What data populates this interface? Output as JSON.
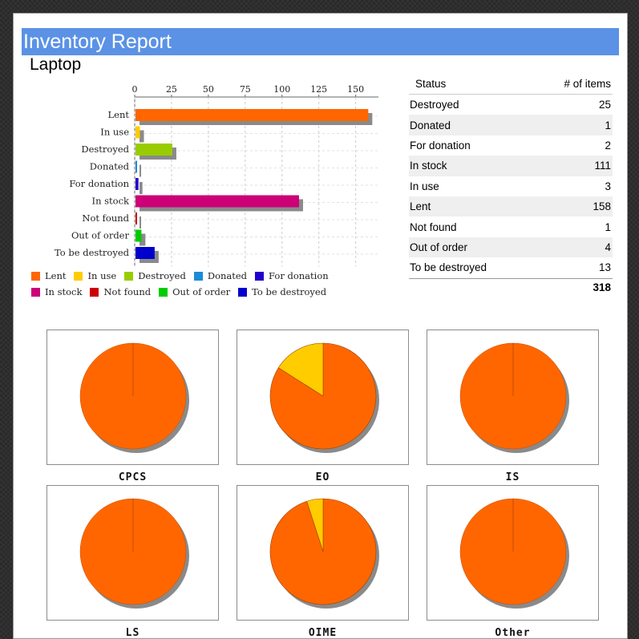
{
  "header": {
    "title": "Inventory Report",
    "subtitle": "Laptop"
  },
  "table": {
    "headers": [
      "Status",
      "# of items"
    ],
    "rows": [
      [
        "Destroyed",
        "25"
      ],
      [
        "Donated",
        "1"
      ],
      [
        "For donation",
        "2"
      ],
      [
        "In stock",
        "111"
      ],
      [
        "In use",
        "3"
      ],
      [
        "Lent",
        "158"
      ],
      [
        "Not found",
        "1"
      ],
      [
        "Out of order",
        "4"
      ],
      [
        "To be destroyed",
        "13"
      ]
    ],
    "total": "318"
  },
  "legend": [
    {
      "label": "Lent",
      "color": "#ff6600"
    },
    {
      "label": "In use",
      "color": "#ffcc00"
    },
    {
      "label": "Destroyed",
      "color": "#99cc00"
    },
    {
      "label": "Donated",
      "color": "#1a8cd8"
    },
    {
      "label": "For donation",
      "color": "#2200cc"
    },
    {
      "label": "In stock",
      "color": "#cc0077"
    },
    {
      "label": "Not found",
      "color": "#cc0000"
    },
    {
      "label": "Out of order",
      "color": "#00cc00"
    },
    {
      "label": "To be destroyed",
      "color": "#0000cc"
    }
  ],
  "chart_data": [
    {
      "type": "bar",
      "orientation": "horizontal",
      "categories": [
        "Lent",
        "In use",
        "Destroyed",
        "Donated",
        "For donation",
        "In stock",
        "Not found",
        "Out of order",
        "To be destroyed"
      ],
      "values": [
        158,
        3,
        25,
        1,
        2,
        111,
        1,
        4,
        13
      ],
      "colors": [
        "#ff6600",
        "#ffcc00",
        "#99cc00",
        "#1a8cd8",
        "#2200cc",
        "#cc0077",
        "#cc0000",
        "#00cc00",
        "#0000cc"
      ],
      "xlim": [
        0,
        165
      ],
      "xticks": [
        0,
        25,
        50,
        75,
        100,
        125,
        150
      ],
      "grid": true,
      "legend_position": "bottom"
    },
    {
      "type": "pie",
      "title": "CPCS",
      "slices": [
        {
          "label": "Lent",
          "value": 1.0,
          "color": "#ff6600"
        }
      ]
    },
    {
      "type": "pie",
      "title": "EO",
      "slices": [
        {
          "label": "Lent",
          "value": 0.84,
          "color": "#ff6600"
        },
        {
          "label": "In use",
          "value": 0.16,
          "color": "#ffcc00"
        }
      ]
    },
    {
      "type": "pie",
      "title": "IS",
      "slices": [
        {
          "label": "Lent",
          "value": 1.0,
          "color": "#ff6600"
        }
      ]
    },
    {
      "type": "pie",
      "title": "LS",
      "slices": [
        {
          "label": "Lent",
          "value": 1.0,
          "color": "#ff6600"
        }
      ]
    },
    {
      "type": "pie",
      "title": "OIME",
      "slices": [
        {
          "label": "Lent",
          "value": 0.95,
          "color": "#ff6600"
        },
        {
          "label": "In use",
          "value": 0.05,
          "color": "#ffcc00"
        }
      ]
    },
    {
      "type": "pie",
      "title": "Other",
      "slices": [
        {
          "label": "Lent",
          "value": 1.0,
          "color": "#ff6600"
        }
      ]
    }
  ]
}
